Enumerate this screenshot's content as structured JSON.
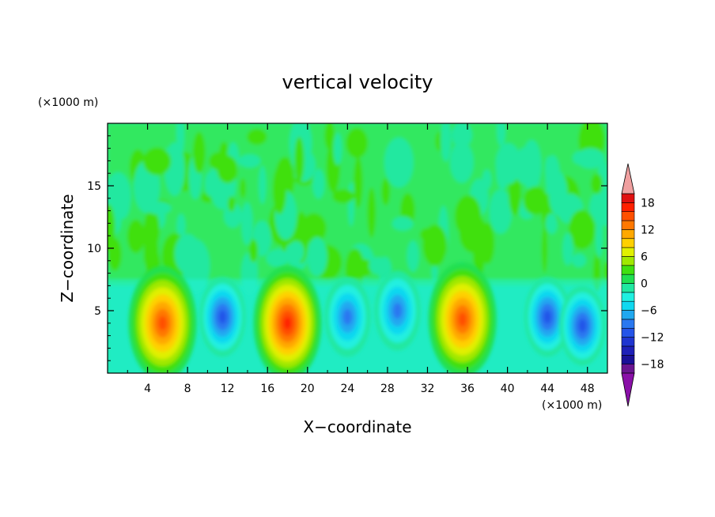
{
  "chart_data": {
    "type": "heatmap",
    "title": "vertical velocity",
    "xlabel": "X−coordinate",
    "ylabel": "Z−coordinate",
    "x_unit": "(×1000 m)",
    "y_unit": "(×1000 m)",
    "xlim": [
      0,
      50
    ],
    "ylim": [
      0,
      20
    ],
    "x_ticks": [
      4,
      8,
      12,
      16,
      20,
      24,
      28,
      32,
      36,
      40,
      44,
      48
    ],
    "y_ticks": [
      5,
      10,
      15
    ],
    "colorbar": {
      "levels": [
        -20,
        -18,
        -16,
        -14,
        -12,
        -10,
        -8,
        -6,
        -4,
        -2,
        0,
        2,
        4,
        6,
        8,
        10,
        12,
        14,
        16,
        18,
        20
      ],
      "tick_labels": [
        "18",
        "12",
        "6",
        "0",
        "−6",
        "−12",
        "−18"
      ],
      "tick_values": [
        18,
        12,
        6,
        0,
        -6,
        -12,
        -18
      ],
      "colors": [
        "#6a1590",
        "#1a1098",
        "#1e20b8",
        "#1f35d0",
        "#2454e8",
        "#2a78f0",
        "#20a8f0",
        "#10d8f0",
        "#20f0e0",
        "#20e8a0",
        "#20e050",
        "#40e010",
        "#a0e800",
        "#e0f000",
        "#ffd000",
        "#ffa800",
        "#ff7800",
        "#ff5000",
        "#ff2000",
        "#e01010"
      ],
      "under_color": "#8a10a8",
      "over_color": "#f0a0a0"
    },
    "features": [
      {
        "name": "updraft",
        "x": 5.5,
        "z": 4.0,
        "value": 16
      },
      {
        "name": "updraft",
        "x": 18.0,
        "z": 4.0,
        "value": 17
      },
      {
        "name": "updraft",
        "x": 35.5,
        "z": 4.3,
        "value": 16
      },
      {
        "name": "downdraft",
        "x": 11.5,
        "z": 4.5,
        "value": -12
      },
      {
        "name": "downdraft",
        "x": 24.0,
        "z": 4.5,
        "value": -10
      },
      {
        "name": "downdraft",
        "x": 29.0,
        "z": 5.0,
        "value": -9
      },
      {
        "name": "downdraft",
        "x": 44.0,
        "z": 4.5,
        "value": -11
      },
      {
        "name": "downdraft",
        "x": 47.5,
        "z": 3.8,
        "value": -12
      }
    ]
  }
}
